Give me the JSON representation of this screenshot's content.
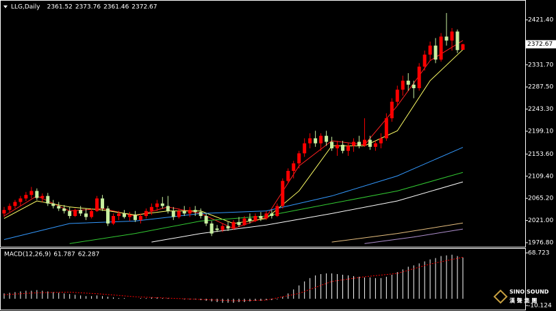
{
  "chart_data": [
    {
      "type": "candlestick",
      "title": "LLG,Daily",
      "open": [
        2035,
        2042,
        2050,
        2058,
        2065,
        2072,
        2080,
        2066,
        2070,
        2055,
        2050,
        2045,
        2040,
        2030,
        2042,
        2035,
        2028,
        2040,
        2065,
        2045,
        2015,
        2030,
        2035,
        2028,
        2032,
        2022,
        2030,
        2040,
        2048,
        2055,
        2050,
        2040,
        2028,
        2040,
        2035,
        2042,
        2038,
        2030,
        2015,
        2005,
        2002,
        2010,
        2005,
        2018,
        2012,
        2025,
        2020,
        2030,
        2025,
        2035,
        2030,
        2050,
        2100,
        2120,
        2135,
        2155,
        2175,
        2185,
        2175,
        2190,
        2178,
        2165,
        2172,
        2160,
        2170,
        2178,
        2170,
        2182,
        2168,
        2175,
        2185,
        2225,
        2258,
        2282,
        2300,
        2292,
        2285,
        2328,
        2352,
        2370,
        2342,
        2388,
        2380,
        2398,
        2361.52
      ],
      "high": [
        2048,
        2055,
        2062,
        2070,
        2078,
        2088,
        2085,
        2075,
        2076,
        2062,
        2058,
        2052,
        2048,
        2045,
        2050,
        2045,
        2045,
        2070,
        2072,
        2050,
        2035,
        2040,
        2042,
        2038,
        2040,
        2035,
        2045,
        2055,
        2062,
        2068,
        2070,
        2048,
        2045,
        2050,
        2048,
        2050,
        2045,
        2035,
        2020,
        2012,
        2015,
        2018,
        2022,
        2028,
        2030,
        2035,
        2035,
        2038,
        2040,
        2042,
        2055,
        2105,
        2125,
        2140,
        2160,
        2185,
        2195,
        2200,
        2195,
        2200,
        2188,
        2180,
        2180,
        2175,
        2185,
        2190,
        2225,
        2190,
        2180,
        2195,
        2235,
        2265,
        2290,
        2310,
        2315,
        2300,
        2335,
        2360,
        2378,
        2385,
        2395,
        2435,
        2405,
        2402,
        2373.76
      ],
      "low": [
        2028,
        2038,
        2045,
        2050,
        2060,
        2065,
        2062,
        2058,
        2050,
        2045,
        2040,
        2035,
        2025,
        2028,
        2030,
        2022,
        2025,
        2038,
        2040,
        2010,
        2012,
        2022,
        2025,
        2020,
        2018,
        2015,
        2025,
        2032,
        2040,
        2045,
        2035,
        2022,
        2025,
        2030,
        2028,
        2030,
        2025,
        2010,
        1990,
        1998,
        1998,
        2000,
        2002,
        2008,
        2010,
        2015,
        2018,
        2020,
        2022,
        2025,
        2028,
        2045,
        2095,
        2105,
        2125,
        2148,
        2165,
        2168,
        2160,
        2170,
        2160,
        2150,
        2155,
        2150,
        2158,
        2165,
        2168,
        2162,
        2160,
        2165,
        2180,
        2218,
        2250,
        2270,
        2280,
        2265,
        2280,
        2320,
        2340,
        2335,
        2338,
        2370,
        2360,
        2355,
        2361.46
      ],
      "close": [
        2042,
        2050,
        2058,
        2065,
        2072,
        2080,
        2066,
        2070,
        2055,
        2050,
        2045,
        2040,
        2030,
        2042,
        2035,
        2028,
        2040,
        2065,
        2045,
        2015,
        2030,
        2035,
        2028,
        2032,
        2022,
        2030,
        2040,
        2048,
        2055,
        2050,
        2040,
        2028,
        2040,
        2035,
        2042,
        2038,
        2030,
        2015,
        1995,
        2002,
        2010,
        2005,
        2018,
        2012,
        2025,
        2020,
        2030,
        2025,
        2035,
        2030,
        2050,
        2100,
        2120,
        2135,
        2155,
        2175,
        2185,
        2175,
        2190,
        2178,
        2165,
        2172,
        2160,
        2170,
        2178,
        2170,
        2182,
        2168,
        2175,
        2185,
        2225,
        2258,
        2282,
        2300,
        2292,
        2285,
        2328,
        2352,
        2370,
        2342,
        2388,
        2380,
        2398,
        2361,
        2372.67
      ],
      "up_color": "#ff0000",
      "down_color": "#c8f0a0",
      "moving_averages": [
        {
          "color": "#ff2020",
          "x": [
            0,
            6,
            12,
            18,
            24,
            30,
            36,
            42,
            48,
            54,
            60,
            66,
            72,
            78,
            84
          ],
          "values": [
            2030,
            2070,
            2040,
            2045,
            2030,
            2048,
            2035,
            2005,
            2028,
            2130,
            2180,
            2172,
            2250,
            2340,
            2380
          ]
        },
        {
          "color": "#ffff66",
          "x": [
            0,
            6,
            12,
            18,
            24,
            30,
            36,
            42,
            48,
            54,
            60,
            66,
            72,
            78,
            84
          ],
          "values": [
            2025,
            2060,
            2048,
            2042,
            2032,
            2040,
            2040,
            2015,
            2025,
            2080,
            2170,
            2170,
            2200,
            2300,
            2362
          ]
        },
        {
          "color": "#3399ff",
          "x": [
            0,
            12,
            24,
            36,
            48,
            60,
            72,
            84
          ],
          "values": [
            1983,
            2015,
            2020,
            2035,
            2040,
            2070,
            2110,
            2167
          ]
        },
        {
          "color": "#33cc33",
          "x": [
            12,
            24,
            36,
            48,
            60,
            72,
            84
          ],
          "values": [
            1975,
            1995,
            2020,
            2030,
            2055,
            2080,
            2117
          ]
        },
        {
          "color": "#ffffff",
          "x": [
            27,
            36,
            48,
            60,
            72,
            84
          ],
          "values": [
            1978,
            1995,
            2012,
            2035,
            2060,
            2098
          ]
        },
        {
          "color": "#e8c080",
          "x": [
            60,
            72,
            84
          ],
          "values": [
            1978,
            1995,
            2016
          ]
        },
        {
          "color": "#b090d0",
          "x": [
            66,
            75,
            84
          ],
          "values": [
            1975,
            1988,
            2004
          ]
        }
      ],
      "ylim": [
        1970,
        2440.5
      ],
      "yticks": [
        {
          "value": 2421.4,
          "label": "2421.40"
        },
        {
          "value": 2331.7,
          "label": "2331.70"
        },
        {
          "value": 2287.5,
          "label": "2287.50"
        },
        {
          "value": 2243.3,
          "label": "2243.30"
        },
        {
          "value": 2199.1,
          "label": "2199.10"
        },
        {
          "value": 2153.6,
          "label": "2153.60"
        },
        {
          "value": 2109.4,
          "label": "2109.40"
        },
        {
          "value": 2065.2,
          "label": "2065.20"
        },
        {
          "value": 2021,
          "label": "2021.00"
        },
        {
          "value": 1976.8,
          "label": "1976.80"
        }
      ]
    },
    {
      "type": "macd",
      "title": "MACD(12,26,9)",
      "color": "#ffffff",
      "values": [
        8,
        9,
        10,
        11,
        12,
        12,
        13,
        12,
        11,
        10,
        9,
        8,
        7,
        6,
        5,
        4,
        4,
        5,
        4,
        3,
        2,
        1,
        1,
        0,
        0,
        1,
        1,
        2,
        2,
        1,
        1,
        0,
        0,
        -1,
        -1,
        -1,
        -2,
        -3,
        -4,
        -5,
        -6,
        -6,
        -6,
        -5,
        -5,
        -4,
        -3,
        -3,
        -2,
        -2,
        -1,
        3,
        8,
        14,
        20,
        26,
        31,
        35,
        37,
        38,
        38,
        37,
        36,
        35,
        34,
        33,
        32,
        32,
        31,
        31,
        33,
        36,
        40,
        44,
        48,
        50,
        53,
        56,
        59,
        61,
        64,
        65,
        66,
        64,
        61.787
      ],
      "signal": {
        "color": "#ff0000",
        "x": [
          0,
          6,
          12,
          18,
          24,
          30,
          36,
          42,
          48,
          54,
          60,
          66,
          72,
          78,
          84
        ],
        "values": [
          6,
          9,
          10,
          7,
          3,
          1,
          -1,
          -3,
          -2,
          8,
          26,
          33,
          38,
          52,
          62.287
        ]
      },
      "ylim": [
        -10.124,
        68.723
      ],
      "yticks": [
        -10.124,
        68.723
      ]
    }
  ],
  "watermark": {
    "name": "SINO SOUND",
    "subtitle": "漢 聲 集 團"
  }
}
